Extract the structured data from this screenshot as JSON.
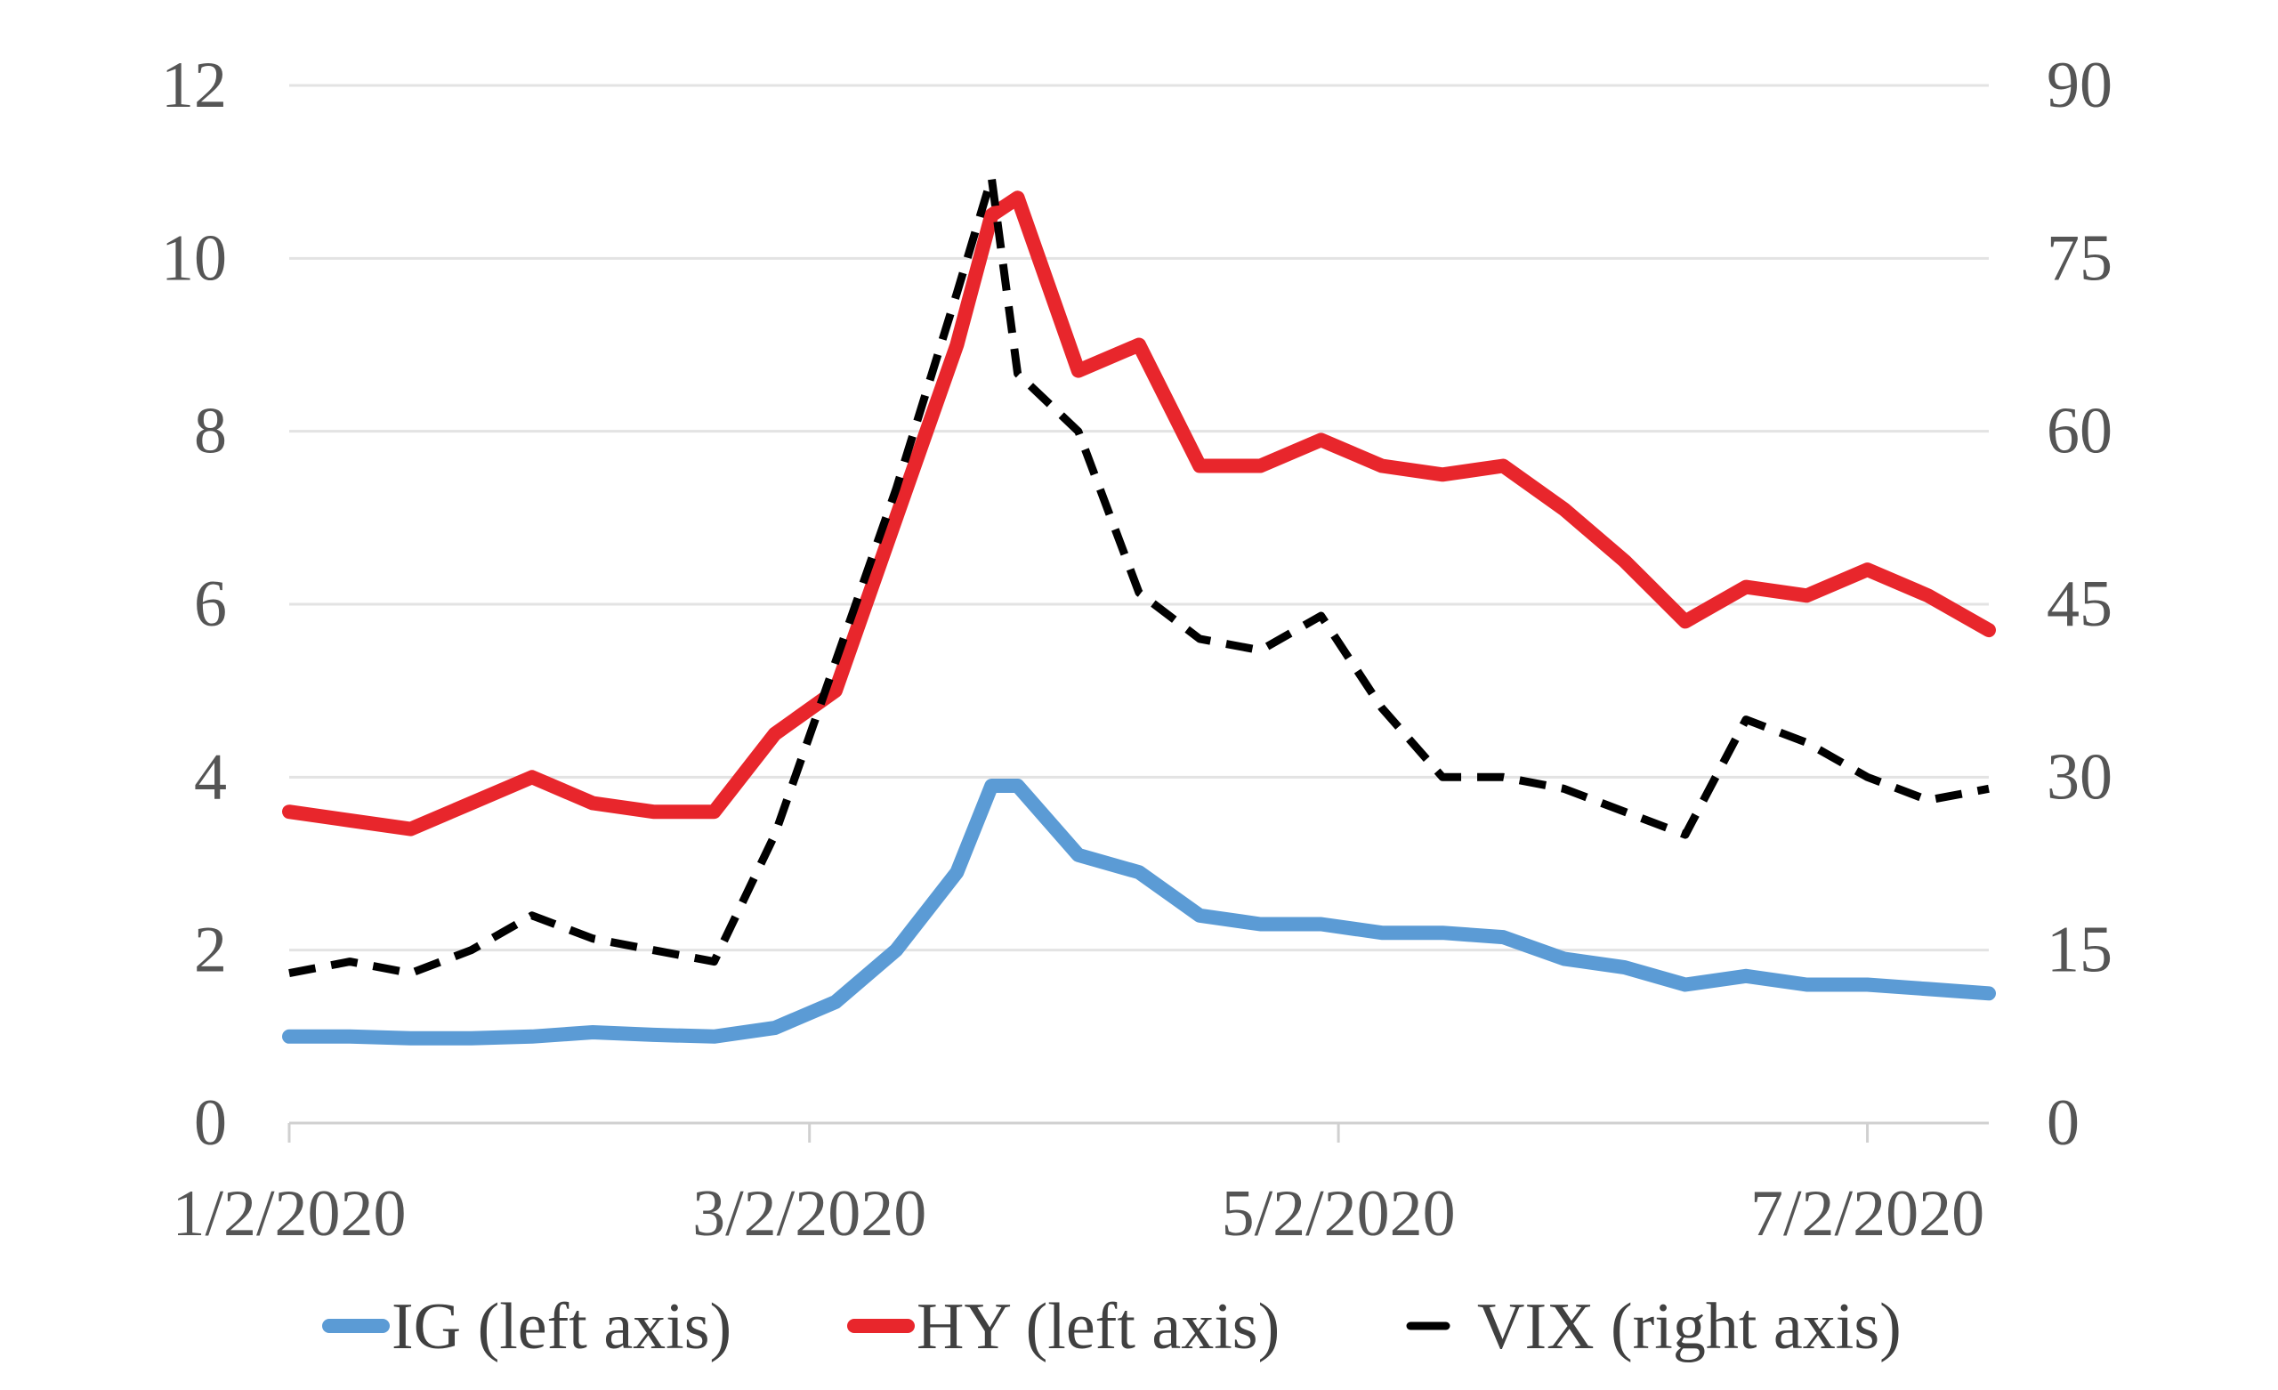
{
  "chart_data": {
    "type": "line",
    "title": "",
    "xlabel": "",
    "ylabel": "",
    "x_dates": [
      "2020-01-02",
      "2020-01-09",
      "2020-01-16",
      "2020-01-23",
      "2020-01-30",
      "2020-02-06",
      "2020-02-13",
      "2020-02-20",
      "2020-02-27",
      "2020-03-05",
      "2020-03-12",
      "2020-03-19",
      "2020-03-23",
      "2020-03-26",
      "2020-04-02",
      "2020-04-09",
      "2020-04-16",
      "2020-04-23",
      "2020-04-30",
      "2020-05-07",
      "2020-05-14",
      "2020-05-21",
      "2020-05-28",
      "2020-06-04",
      "2020-06-11",
      "2020-06-18",
      "2020-06-25",
      "2020-07-02",
      "2020-07-09",
      "2020-07-16"
    ],
    "x_ticks": [
      {
        "date": "2020-01-02",
        "label": "1/2/2020"
      },
      {
        "date": "2020-03-02",
        "label": "3/2/2020"
      },
      {
        "date": "2020-05-02",
        "label": "5/2/2020"
      },
      {
        "date": "2020-07-02",
        "label": "7/2/2020"
      }
    ],
    "y_left": {
      "min": 0,
      "max": 12,
      "ticks": [
        "0",
        "2",
        "4",
        "6",
        "8",
        "10",
        "12"
      ]
    },
    "y_right": {
      "min": 0,
      "max": 90,
      "ticks": [
        "0",
        "15",
        "30",
        "45",
        "60",
        "75",
        "90"
      ]
    },
    "grid": "horizontal",
    "legend_position": "bottom",
    "series": [
      {
        "name": "IG (left axis)",
        "axis": "left",
        "color": "#5B9BD5",
        "style": "solid",
        "values": [
          1.0,
          1.0,
          0.98,
          0.98,
          1.0,
          1.05,
          1.02,
          1.0,
          1.1,
          1.4,
          2.0,
          2.9,
          3.9,
          3.9,
          3.1,
          2.9,
          2.4,
          2.3,
          2.3,
          2.2,
          2.2,
          2.15,
          1.9,
          1.8,
          1.6,
          1.7,
          1.6,
          1.6,
          1.55,
          1.5
        ]
      },
      {
        "name": "HY (left axis)",
        "axis": "right_unused",
        "axis_side": "left",
        "color": "#E8262C",
        "style": "solid",
        "values": [
          3.6,
          3.5,
          3.4,
          3.7,
          4.0,
          3.7,
          3.6,
          3.6,
          4.5,
          5.0,
          7.0,
          9.0,
          10.5,
          10.7,
          8.7,
          9.0,
          7.6,
          7.6,
          7.9,
          7.6,
          7.5,
          7.6,
          7.1,
          6.5,
          5.8,
          6.2,
          6.1,
          6.4,
          6.1,
          5.7
        ]
      },
      {
        "name": "VIX (right axis)",
        "axis": "right",
        "color": "#000000",
        "style": "dashed",
        "values": [
          13,
          14,
          13,
          15,
          18,
          16,
          15,
          14,
          25,
          40,
          55,
          72,
          82,
          65,
          60,
          46,
          42,
          41,
          44,
          36,
          30,
          30,
          29,
          27,
          25,
          35,
          33,
          30,
          28,
          29
        ]
      }
    ]
  }
}
